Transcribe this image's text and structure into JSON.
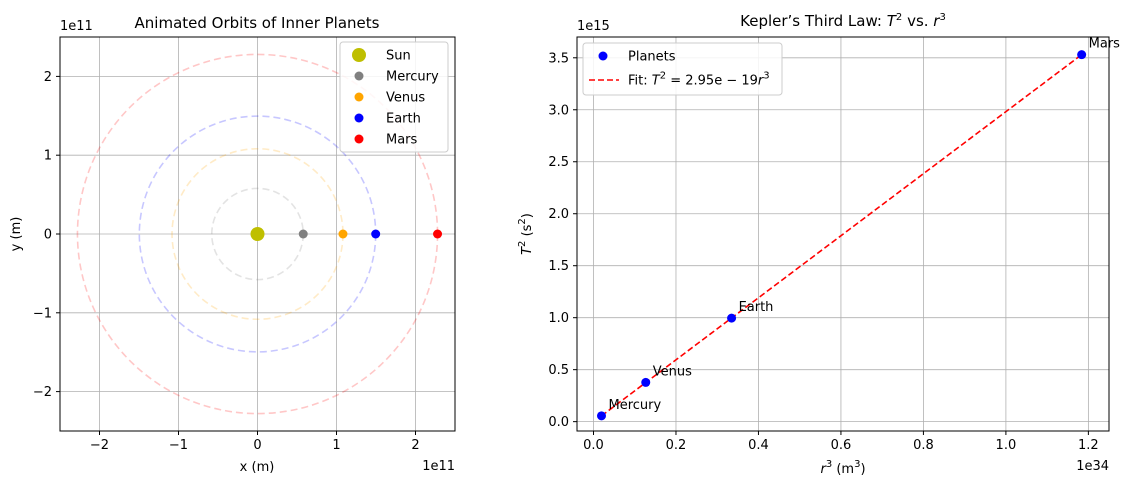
{
  "chart_data": [
    {
      "type": "scatter",
      "title": "Animated Orbits of Inner Planets",
      "xlabel": "x (m)",
      "ylabel": "y (m)",
      "x_scale_label": "1e11",
      "y_scale_label": "1e11",
      "xlim": [
        -2.5,
        2.5
      ],
      "ylim": [
        -2.5,
        2.5
      ],
      "xticks": [
        -2,
        -1,
        0,
        1,
        2
      ],
      "xtick_labels": [
        "−2",
        "−1",
        "0",
        "1",
        "2"
      ],
      "yticks": [
        -2,
        -1,
        0,
        1,
        2
      ],
      "ytick_labels": [
        "−2",
        "−1",
        "0",
        "1",
        "2"
      ],
      "grid": true,
      "legend_position": "top-right",
      "orbits": [
        {
          "planet": "Mercury",
          "radius": 0.579,
          "color": "#808080",
          "style": "dashed"
        },
        {
          "planet": "Venus",
          "radius": 1.082,
          "color": "#FFA500",
          "style": "dashed"
        },
        {
          "planet": "Earth",
          "radius": 1.496,
          "color": "#0000FF",
          "style": "dashed"
        },
        {
          "planet": "Mars",
          "radius": 2.279,
          "color": "#FF0000",
          "style": "dashed"
        }
      ],
      "points": [
        {
          "name": "Sun",
          "x": 0,
          "y": 0,
          "color": "#BFBF00",
          "big": true
        },
        {
          "name": "Mercury",
          "x": 0.579,
          "y": 0,
          "color": "#808080"
        },
        {
          "name": "Venus",
          "x": 1.082,
          "y": 0,
          "color": "#FFA500"
        },
        {
          "name": "Earth",
          "x": 1.496,
          "y": 0,
          "color": "#0000FF"
        },
        {
          "name": "Mars",
          "x": 2.279,
          "y": 0,
          "color": "#FF0000"
        }
      ]
    },
    {
      "type": "scatter",
      "title_prefix": "Kepler’s Third Law: ",
      "title_math": [
        "T",
        "2",
        " vs. ",
        "r",
        "3"
      ],
      "xlabel": [
        "r",
        "3",
        " (m",
        "3",
        ")"
      ],
      "ylabel": [
        "T",
        "2",
        " (s",
        "2",
        ")"
      ],
      "x_scale_label": "1e34",
      "y_scale_label": "1e15",
      "xlim": [
        -0.04,
        1.25
      ],
      "ylim": [
        -0.09,
        3.7
      ],
      "xticks": [
        0.0,
        0.2,
        0.4,
        0.6,
        0.8,
        1.0,
        1.2
      ],
      "xtick_labels": [
        "0.0",
        "0.2",
        "0.4",
        "0.6",
        "0.8",
        "1.0",
        "1.2"
      ],
      "yticks": [
        0.0,
        0.5,
        1.0,
        1.5,
        2.0,
        2.5,
        3.0,
        3.5
      ],
      "ytick_labels": [
        "0.0",
        "0.5",
        "1.0",
        "1.5",
        "2.0",
        "2.5",
        "3.0",
        "3.5"
      ],
      "grid": true,
      "legend_position": "top-left",
      "series": [
        {
          "name": "Planets",
          "color": "#0000FF",
          "kind": "points"
        },
        {
          "name": "Fit",
          "label_parts": [
            "Fit: ",
            "T",
            "2",
            " = 2.95e − 19",
            "r",
            "3"
          ],
          "color": "#FF0000",
          "kind": "dashed-line"
        }
      ],
      "points": [
        {
          "name": "Mercury",
          "x": 0.0194,
          "y": 0.0557
        },
        {
          "name": "Venus",
          "x": 0.1267,
          "y": 0.3774
        },
        {
          "name": "Earth",
          "x": 0.3348,
          "y": 0.9958
        },
        {
          "name": "Mars",
          "x": 1.1837,
          "y": 3.5301
        }
      ],
      "fit_line": {
        "x": [
          0.0194,
          1.1837
        ],
        "y": [
          0.0557,
          3.5301
        ]
      }
    }
  ]
}
